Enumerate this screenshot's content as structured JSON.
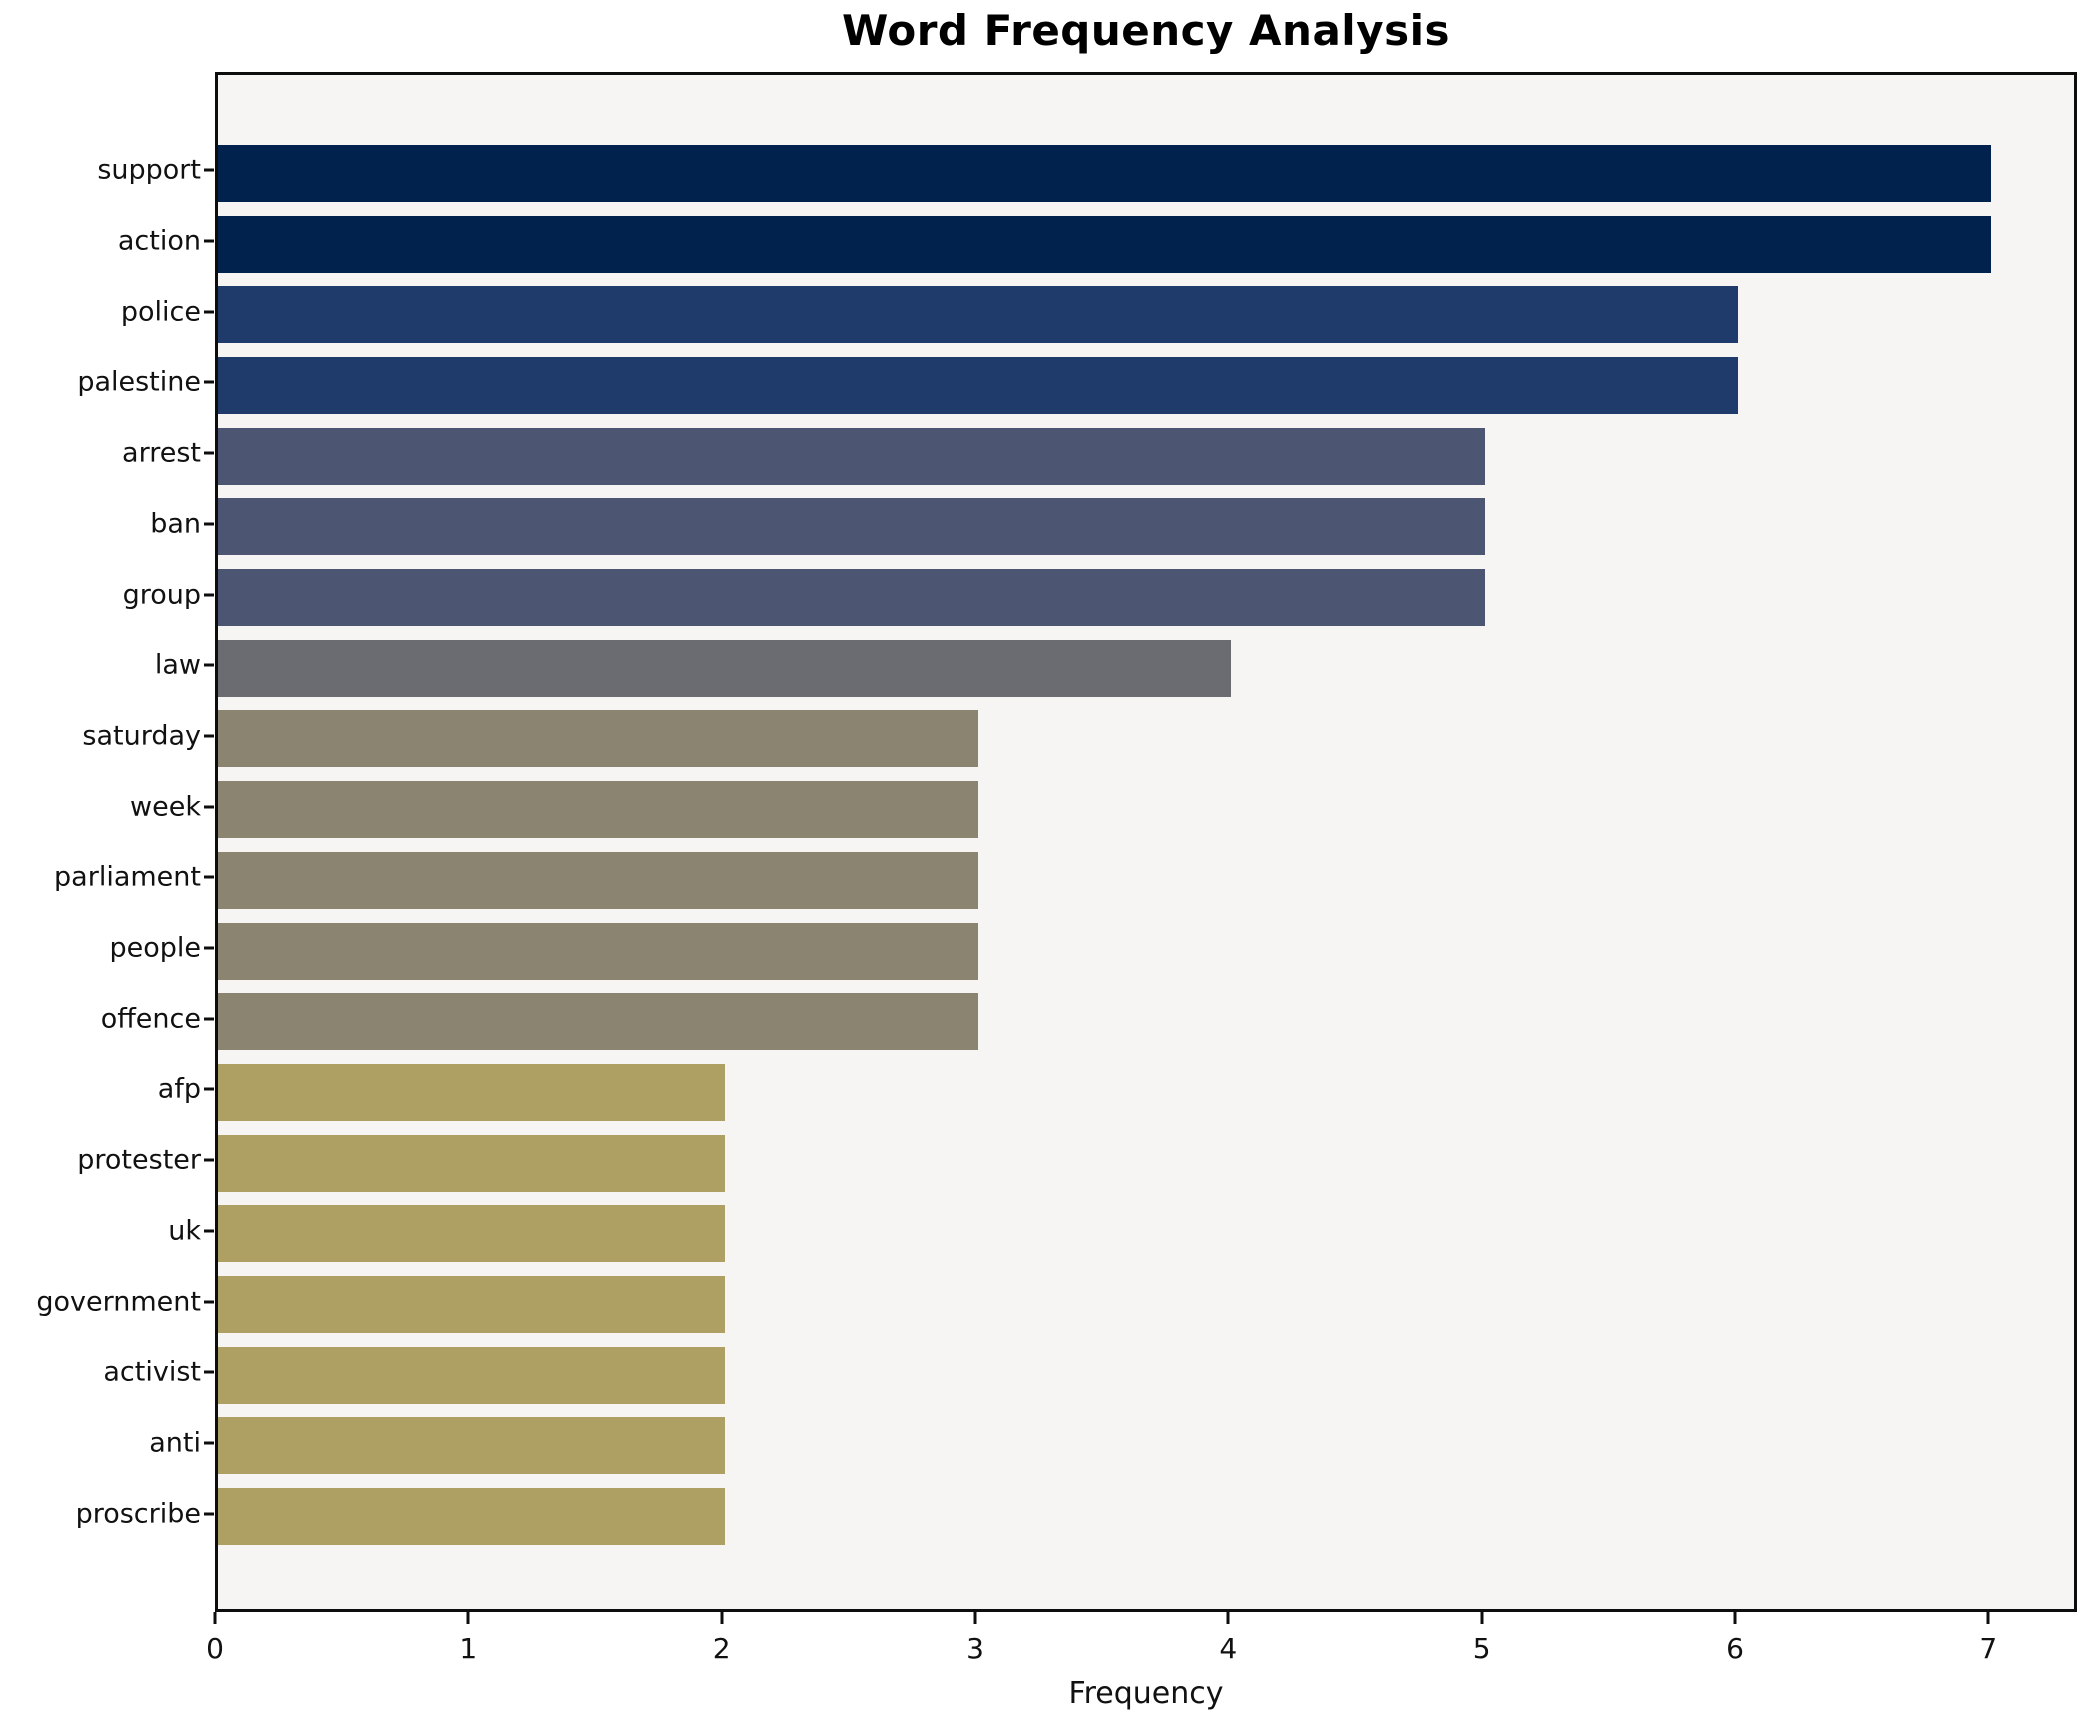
{
  "figure": {
    "title": "Word Frequency Analysis",
    "xlabel": "Frequency",
    "background_color": "#ffffff",
    "plot_background_color": "#f6f5f3",
    "spine_color": "#0d0d0d",
    "text_color": "#111111"
  },
  "chart_data": {
    "type": "bar",
    "orientation": "horizontal",
    "title": "Word Frequency Analysis",
    "xlabel": "Frequency",
    "ylabel": "",
    "categories": [
      "support",
      "action",
      "police",
      "palestine",
      "arrest",
      "ban",
      "group",
      "law",
      "saturday",
      "week",
      "parliament",
      "people",
      "offence",
      "afp",
      "protester",
      "uk",
      "government",
      "activist",
      "anti",
      "proscribe"
    ],
    "values": [
      7,
      7,
      6,
      6,
      5,
      5,
      5,
      4,
      3,
      3,
      3,
      3,
      3,
      2,
      2,
      2,
      2,
      2,
      2,
      2
    ],
    "bar_colors": [
      "#02224e",
      "#02224e",
      "#1f3b6c",
      "#1f3b6c",
      "#4c5571",
      "#4c5571",
      "#4c5571",
      "#6b6b72",
      "#8a8471",
      "#8a8471",
      "#8a8471",
      "#8a8471",
      "#8a8471",
      "#ada062",
      "#ada062",
      "#ada062",
      "#ada062",
      "#ada062",
      "#ada062",
      "#ada062"
    ],
    "x_ticks": [
      0,
      1,
      2,
      3,
      4,
      5,
      6,
      7
    ],
    "xlim": [
      0,
      7.35
    ],
    "grid": false,
    "legend_position": "none"
  }
}
